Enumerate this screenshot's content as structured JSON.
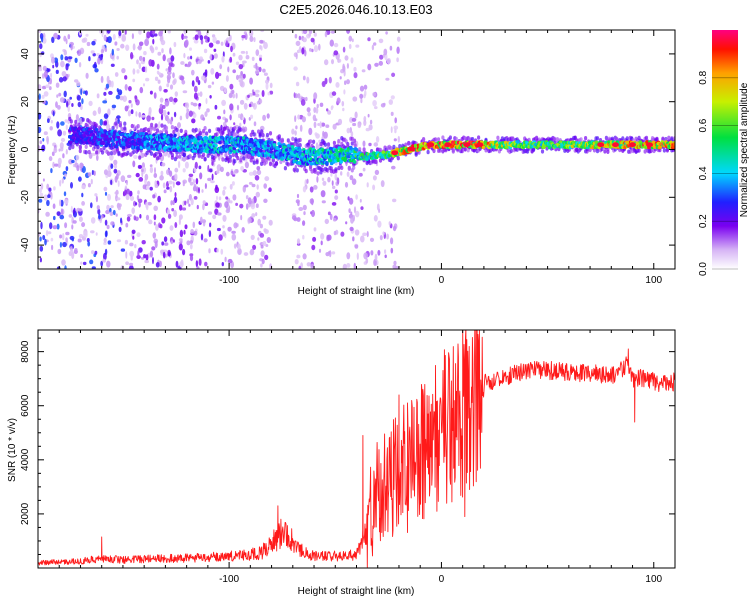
{
  "title": "C2E5.2026.046.10.13.E03",
  "chart_data": [
    {
      "type": "heatmap",
      "xlabel": "Height of straight line (km)",
      "ylabel": "Frequency (Hz)",
      "xlim": [
        -190,
        110
      ],
      "ylim": [
        -50,
        50
      ],
      "xticks": [
        -100,
        0,
        100
      ],
      "xtick_labels": [
        "-100",
        "0",
        "100"
      ],
      "yticks": [
        -40,
        -20,
        0,
        20,
        40
      ],
      "ytick_labels": [
        "-40",
        "-20",
        "0",
        "20",
        "40"
      ],
      "ridge": {
        "x": [
          -170,
          -150,
          -130,
          -110,
          -95,
          -80,
          -75,
          -65,
          -55,
          -45,
          -35,
          -25,
          -15,
          -5,
          0,
          10,
          20,
          40,
          60,
          80,
          100,
          110
        ],
        "freq": [
          6,
          4,
          3,
          2,
          2,
          0,
          -1,
          -3,
          -3,
          -2,
          -3,
          -2,
          0,
          2,
          2,
          2,
          2,
          2,
          2,
          2,
          2,
          2
        ],
        "amplitude": [
          0.3,
          0.35,
          0.4,
          0.45,
          0.45,
          0.4,
          0.45,
          0.45,
          0.5,
          0.55,
          0.6,
          0.65,
          0.9,
          0.95,
          0.9,
          0.95,
          0.85,
          0.6,
          0.7,
          0.8,
          0.9,
          0.9
        ]
      },
      "colorbar": {
        "label": "Normalized spectral amplitude",
        "range": [
          0,
          1
        ],
        "ticks": [
          0.0,
          0.2,
          0.4,
          0.6,
          0.8
        ],
        "tick_labels": [
          "0.0",
          "0.2",
          "0.4",
          "0.6",
          "0.8"
        ]
      }
    },
    {
      "type": "line",
      "xlabel": "Height of straight line (km)",
      "ylabel": "SNR (10 * v/v)",
      "xlim": [
        -190,
        110
      ],
      "ylim": [
        0,
        8800
      ],
      "xticks": [
        -100,
        0,
        100
      ],
      "xtick_labels": [
        "-100",
        "0",
        "100"
      ],
      "yticks": [
        2000,
        4000,
        6000,
        8000
      ],
      "ytick_labels": [
        "2000",
        "4000",
        "6000",
        "8000"
      ],
      "color": "#ff1a1a",
      "series": [
        {
          "name": "SNR",
          "x": [
            -190,
            -170,
            -160,
            -150,
            -130,
            -110,
            -95,
            -85,
            -80,
            -75,
            -70,
            -65,
            -60,
            -50,
            -40,
            -36,
            -32,
            -28,
            -24,
            -20,
            -16,
            -12,
            -8,
            -4,
            0,
            4,
            8,
            12,
            16,
            20,
            30,
            40,
            50,
            60,
            70,
            80,
            85,
            88,
            90,
            95,
            100,
            105,
            110
          ],
          "y": [
            200,
            250,
            350,
            300,
            350,
            400,
            450,
            550,
            900,
            1300,
            1000,
            600,
            450,
            450,
            500,
            1200,
            2500,
            3200,
            3000,
            3500,
            3800,
            4000,
            4500,
            4800,
            5000,
            5300,
            5500,
            6000,
            6400,
            6800,
            7100,
            7300,
            7300,
            7250,
            7200,
            7100,
            7300,
            7600,
            7000,
            7000,
            6900,
            6800,
            6900
          ]
        }
      ]
    }
  ]
}
